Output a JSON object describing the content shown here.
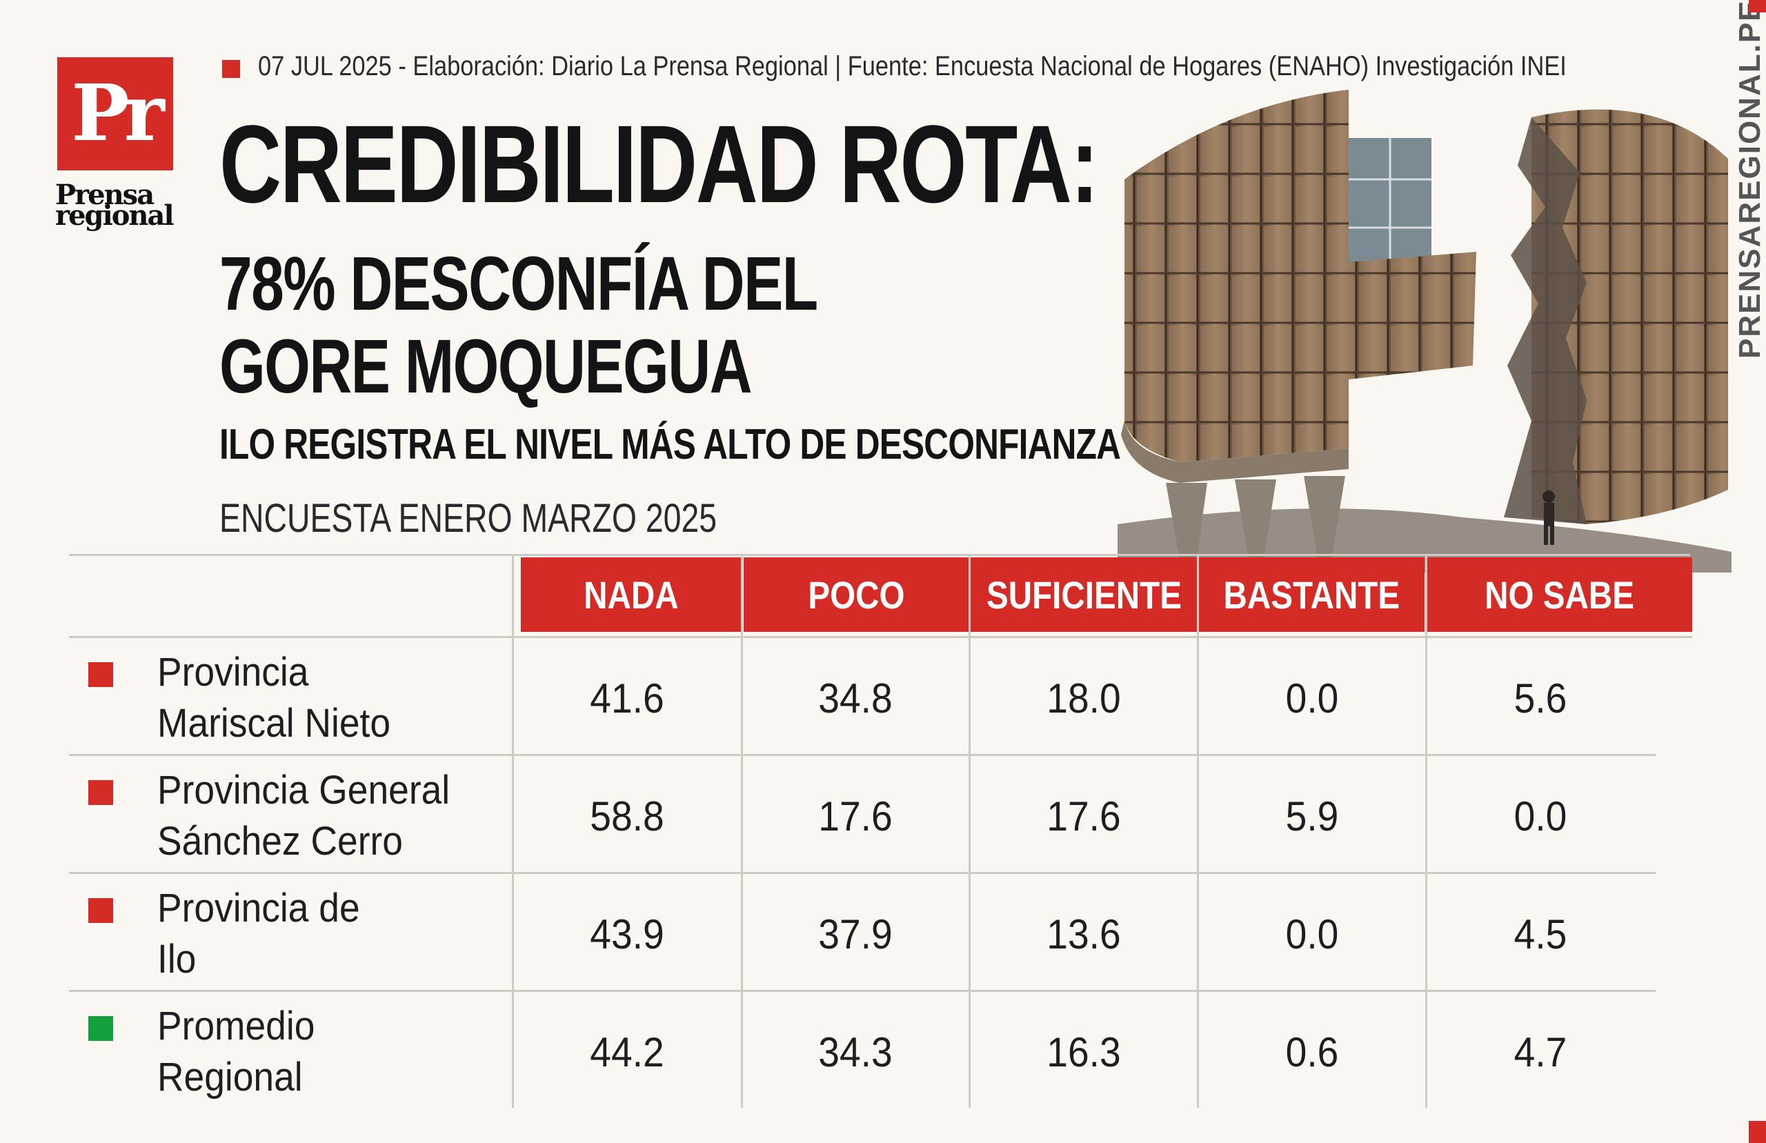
{
  "logo": {
    "letters": "Pr",
    "line1": "Prensa",
    "line2": "regional"
  },
  "meta": "07 JUL 2025 -  Elaboración: Diario La Prensa Regional | Fuente: Encuesta Nacional de Hogares (ENAHO) Investigación INEI",
  "headline": {
    "main": "CREDIBILIDAD ROTA:",
    "sub_line1": "78% DESCONFÍA DEL",
    "sub_line2": "GORE MOQUEGUA",
    "kicker": "ILO REGISTRA EL NIVEL MÁS ALTO DE DESCONFIANZA",
    "survey": "ENCUESTA ENERO MARZO 2025"
  },
  "site": "PRENSAREGIONAL.PE",
  "colors": {
    "accent": "#d52b26",
    "average": "#14a03c"
  },
  "table": {
    "headers": [
      "NADA",
      "POCO",
      "SUFICIENTE",
      "BASTANTE",
      "NO SABE"
    ],
    "rows": [
      {
        "name_line1": "Provincia",
        "name_line2": "Mariscal Nieto",
        "marker": "red",
        "values": [
          "41.6",
          "34.8",
          "18.0",
          "0.0",
          "5.6"
        ]
      },
      {
        "name_line1": "Provincia General",
        "name_line2": "Sánchez Cerro",
        "marker": "red",
        "values": [
          "58.8",
          "17.6",
          "17.6",
          "5.9",
          "0.0"
        ]
      },
      {
        "name_line1": "Provincia de",
        "name_line2": "Ilo",
        "marker": "red",
        "values": [
          "43.9",
          "37.9",
          "13.6",
          "0.0",
          "4.5"
        ]
      },
      {
        "name_line1": "Promedio",
        "name_line2": "Regional",
        "marker": "green",
        "values": [
          "44.2",
          "34.3",
          "16.3",
          "0.6",
          "4.7"
        ]
      }
    ]
  }
}
